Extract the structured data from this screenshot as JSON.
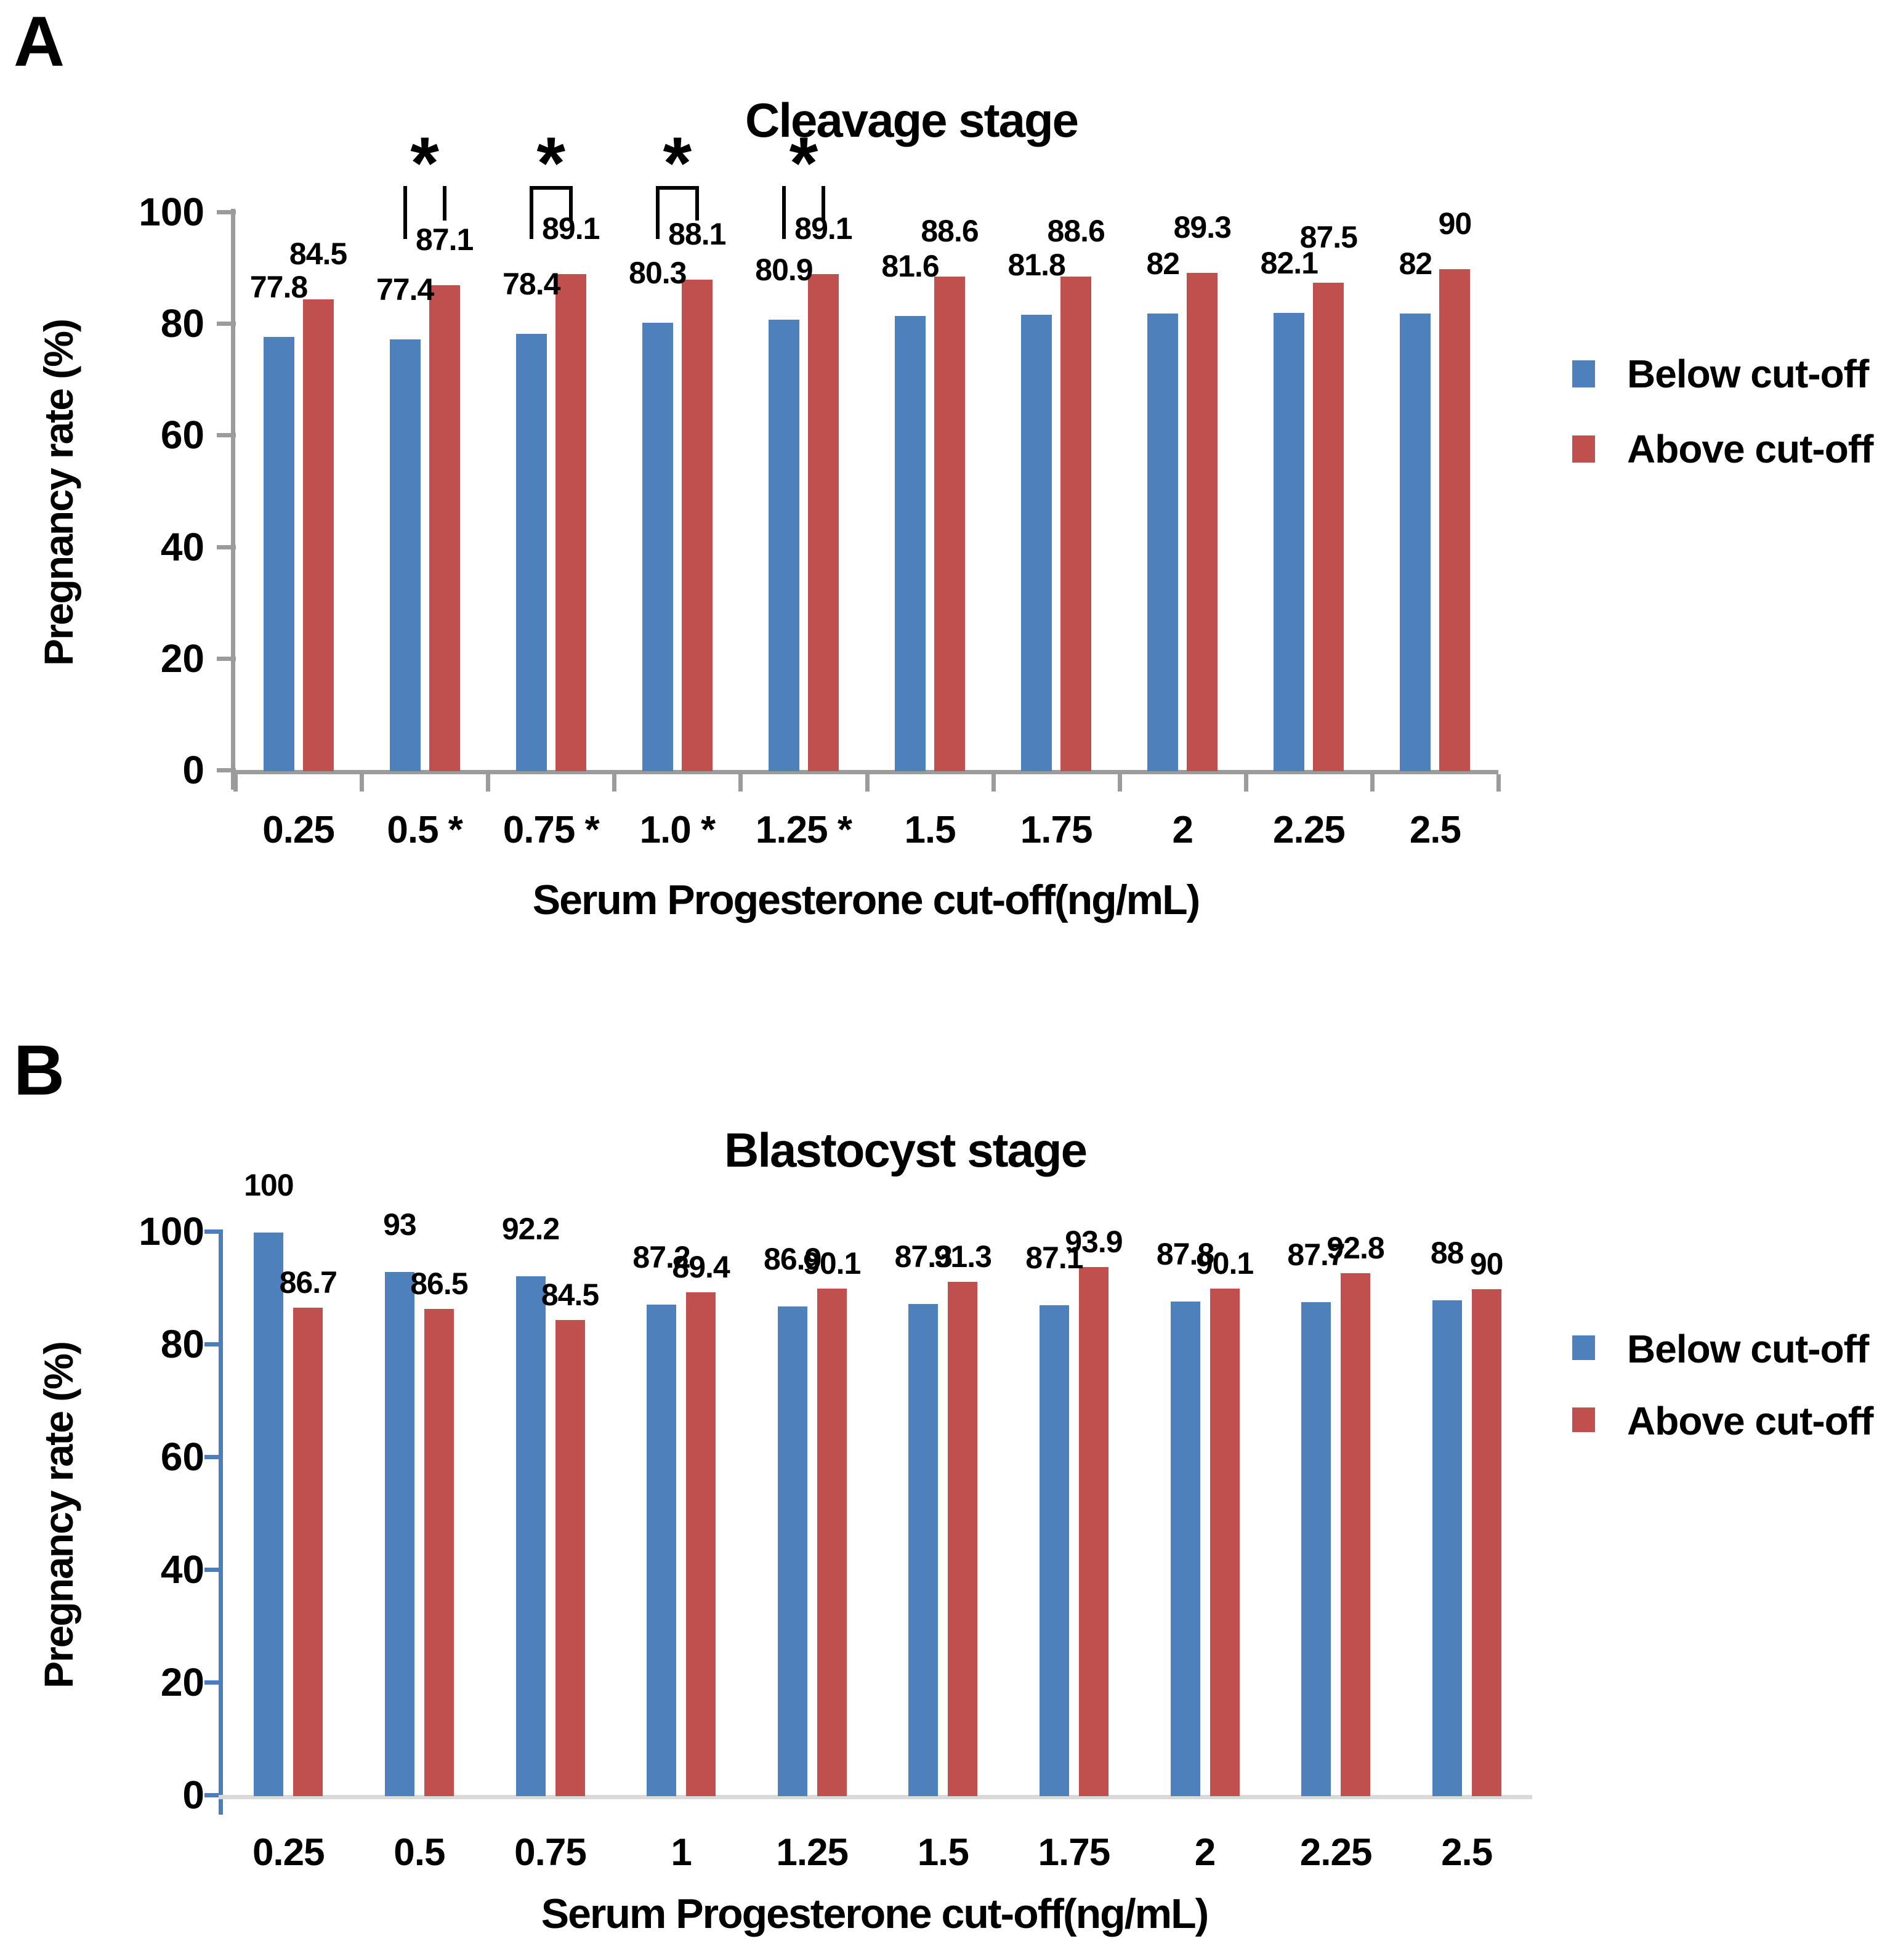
{
  "figure": {
    "background": "#ffffff",
    "panels": [
      "A",
      "B"
    ]
  },
  "colors": {
    "below_series": "#4E80BC",
    "above_series": "#C0504D",
    "axis_gray": "#9B9B9B",
    "axis_blue_b": "#4D7EBC",
    "baseline_light_b": "#D9D9D9",
    "text": "#000000"
  },
  "legend": {
    "below_label": "Below cut-off",
    "above_label": "Above cut-off"
  },
  "chart_data": [
    {
      "panel_letter": "A",
      "type": "bar",
      "title": "Cleavage stage",
      "xlabel": "Serum Progesterone cut-off(ng/mL)",
      "ylabel": "Pregnancy rate (%)",
      "ylim": [
        0,
        100
      ],
      "yticks": [
        "0",
        "20",
        "40",
        "60",
        "80",
        "100"
      ],
      "grid": false,
      "legend_position": "right",
      "categories": [
        "0.25",
        "0.5 *",
        "0.75 *",
        "1.0 *",
        "1.25 *",
        "1.5",
        "1.75",
        "2",
        "2.25",
        "2.5"
      ],
      "series": [
        {
          "name": "Below cut-off",
          "color": "#4E80BC",
          "values": [
            77.8,
            77.4,
            78.4,
            80.3,
            80.9,
            81.6,
            81.8,
            82,
            82.1,
            82
          ]
        },
        {
          "name": "Above cut-off",
          "color": "#C0504D",
          "values": [
            84.5,
            87.1,
            89.1,
            88.1,
            89.1,
            88.6,
            88.6,
            89.3,
            87.5,
            90
          ]
        }
      ],
      "significance_markers": [
        {
          "category_label": "0.5",
          "category_index": 1,
          "symbol": "*",
          "style": "lines"
        },
        {
          "category_label": "0.75",
          "category_index": 2,
          "symbol": "*",
          "style": "bracket"
        },
        {
          "category_label": "1.0",
          "category_index": 3,
          "symbol": "*",
          "style": "bracket"
        },
        {
          "category_label": "1.25",
          "category_index": 4,
          "symbol": "*",
          "style": "lines"
        }
      ]
    },
    {
      "panel_letter": "B",
      "type": "bar",
      "title": "Blastocyst stage",
      "xlabel": "Serum Progesterone cut-off(ng/mL)",
      "ylabel": "Pregnancy rate (%)",
      "ylim": [
        0,
        100
      ],
      "yticks": [
        "0",
        "20",
        "40",
        "60",
        "80",
        "100"
      ],
      "grid": false,
      "legend_position": "right",
      "categories": [
        "0.25",
        "0.5",
        "0.75",
        "1",
        "1.25",
        "1.5",
        "1.75",
        "2",
        "2.25",
        "2.5"
      ],
      "series": [
        {
          "name": "Below cut-off",
          "color": "#4E80BC",
          "values": [
            100,
            93,
            92.2,
            87.2,
            86.9,
            87.3,
            87.1,
            87.8,
            87.7,
            88
          ]
        },
        {
          "name": "Above cut-off",
          "color": "#C0504D",
          "values": [
            86.7,
            86.5,
            84.5,
            89.4,
            90.1,
            91.3,
            93.9,
            90.1,
            92.8,
            90
          ]
        }
      ],
      "significance_markers": []
    }
  ]
}
